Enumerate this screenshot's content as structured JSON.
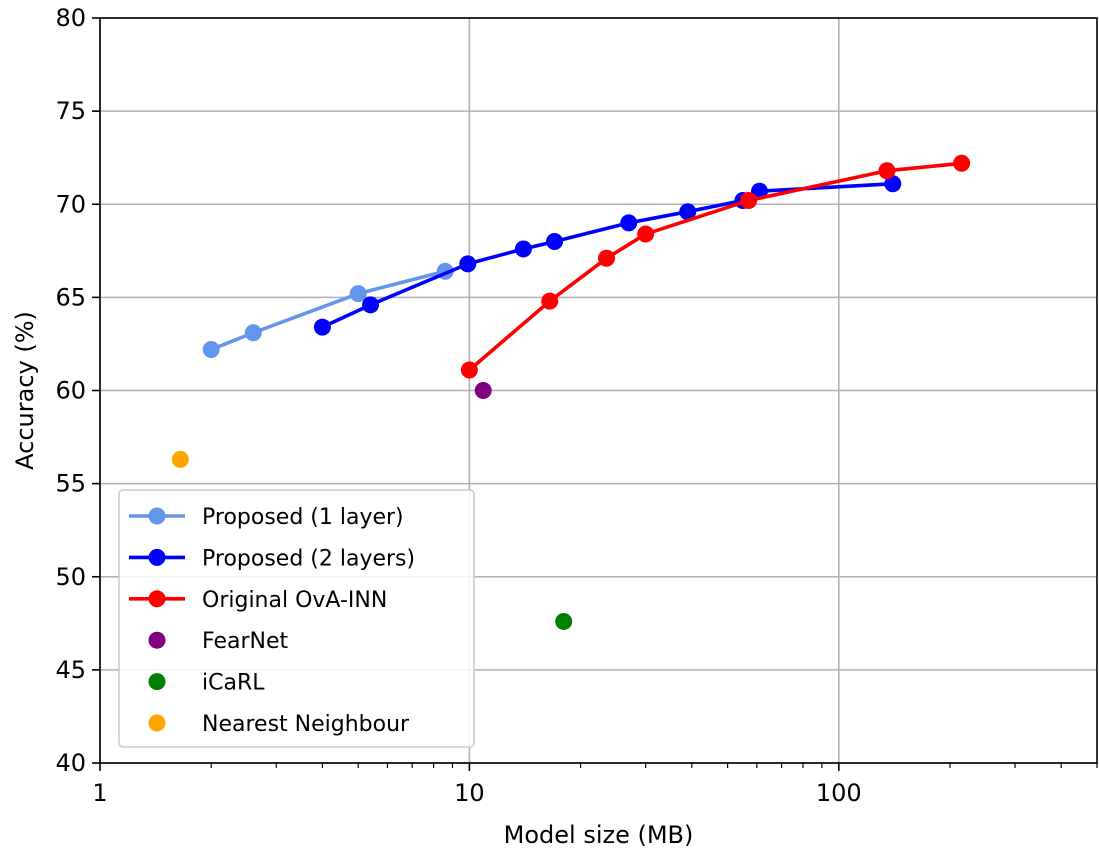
{
  "chart_data": {
    "type": "line",
    "xlabel": "Model size (MB)",
    "ylabel": "Accuracy (%)",
    "xscale": "log",
    "xlim": [
      1,
      500
    ],
    "ylim": [
      40,
      80
    ],
    "xticks": [
      {
        "value": 1,
        "label": "1"
      },
      {
        "value": 10,
        "label": "10"
      },
      {
        "value": 100,
        "label": "100"
      }
    ],
    "yticks": [
      40,
      45,
      50,
      55,
      60,
      65,
      70,
      75,
      80
    ],
    "grid": true,
    "legend_position": "lower-left",
    "series": [
      {
        "name": "Proposed (1 layer)",
        "color": "#6495ED",
        "style": "line-marker",
        "x": [
          2.0,
          2.6,
          5.0,
          8.6
        ],
        "y": [
          62.2,
          63.1,
          65.2,
          66.4
        ]
      },
      {
        "name": "Proposed (2 layers)",
        "color": "#0000FF",
        "style": "line-marker",
        "x": [
          4.0,
          5.4,
          9.9,
          14.0,
          17.0,
          27.0,
          39.0,
          55.0,
          61.0,
          140.0
        ],
        "y": [
          63.4,
          64.6,
          66.8,
          67.6,
          68.0,
          69.0,
          69.6,
          70.2,
          70.7,
          71.1
        ]
      },
      {
        "name": "Original OvA-INN",
        "color": "#FF0000",
        "style": "line-marker",
        "x": [
          10.0,
          16.5,
          23.5,
          30.0,
          57.0,
          135.0,
          215.0
        ],
        "y": [
          61.1,
          64.8,
          67.1,
          68.4,
          70.2,
          71.8,
          72.2
        ]
      },
      {
        "name": "FearNet",
        "color": "#800080",
        "style": "marker",
        "x": [
          10.9
        ],
        "y": [
          60.0
        ]
      },
      {
        "name": "iCaRL",
        "color": "#008000",
        "style": "marker",
        "x": [
          18.0
        ],
        "y": [
          47.6
        ]
      },
      {
        "name": "Nearest Neighbour",
        "color": "#FFA500",
        "style": "marker",
        "x": [
          1.65
        ],
        "y": [
          56.3
        ]
      }
    ]
  }
}
